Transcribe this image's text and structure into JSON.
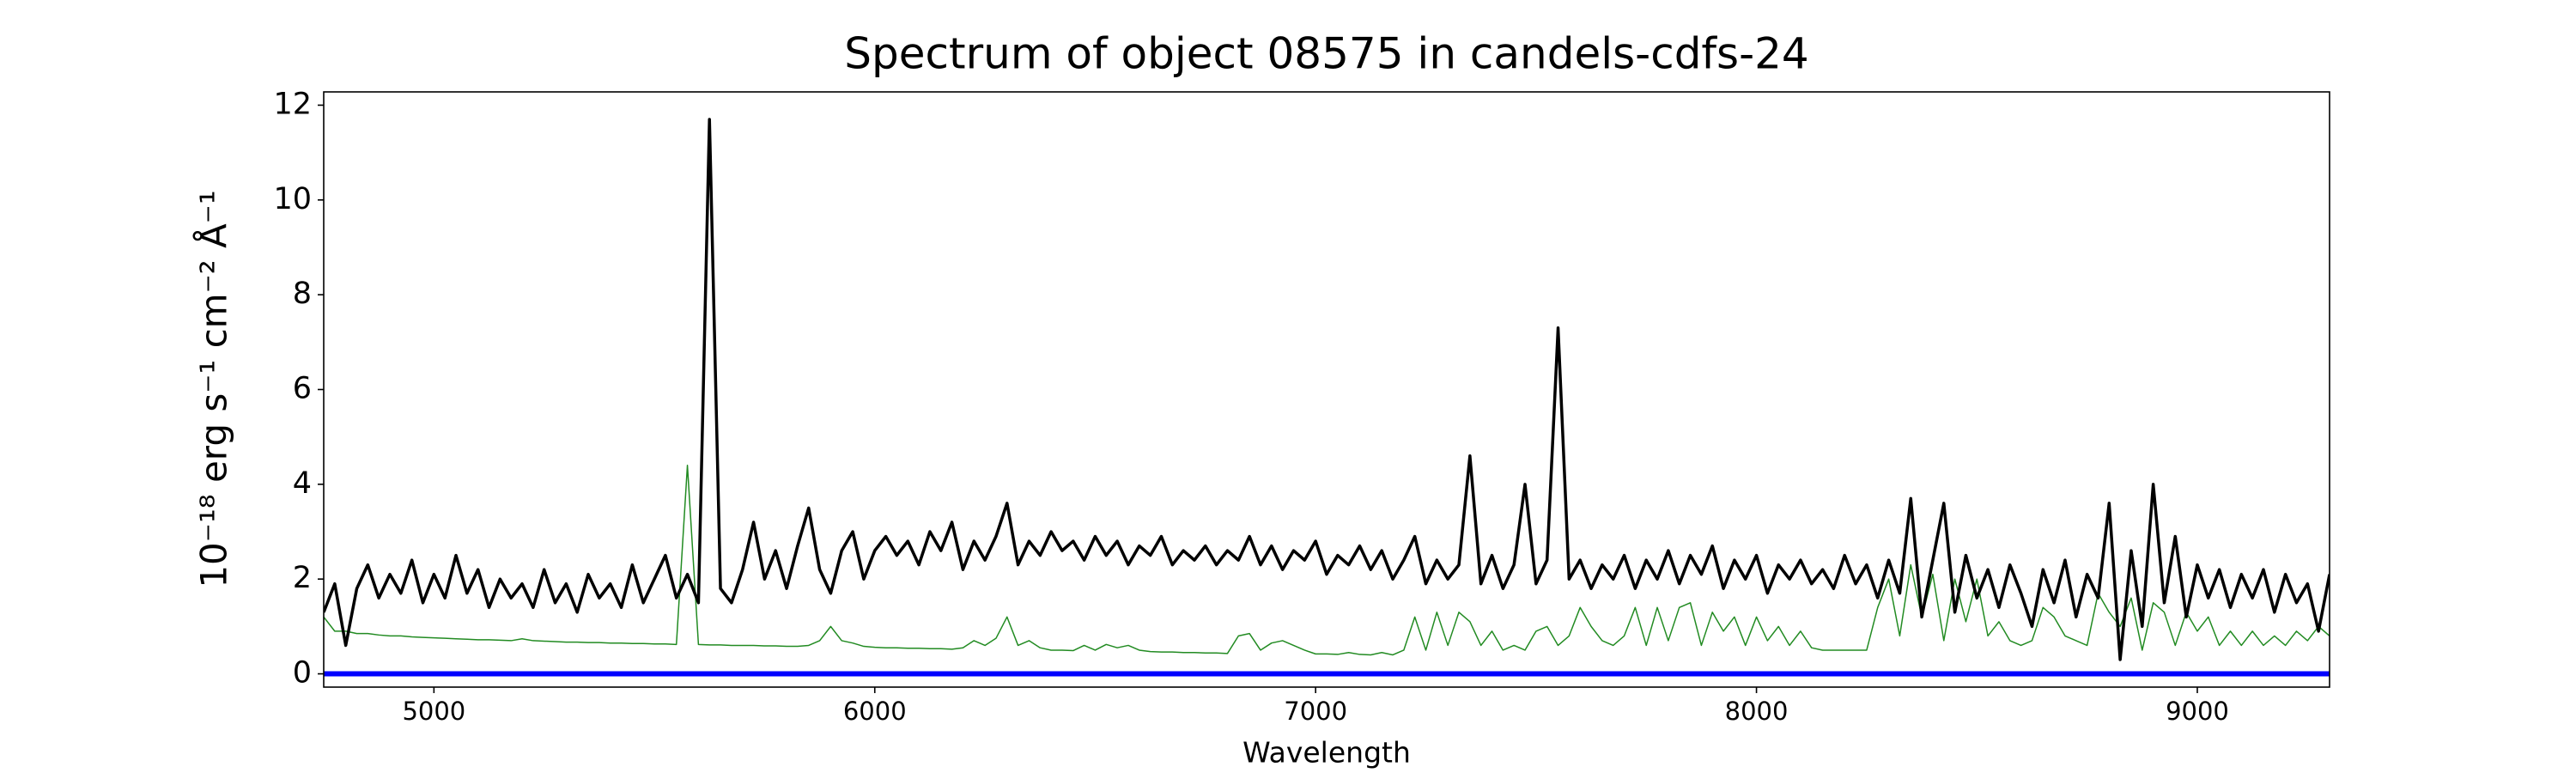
{
  "chart_data": {
    "type": "line",
    "title": "Spectrum of object 08575 in candels-cdfs-24",
    "x_label": "Wavelength",
    "y_label": "10⁻¹⁸ erg s⁻¹ cm⁻² Å⁻¹",
    "x": [
      4750,
      4775,
      4800,
      4825,
      4850,
      4875,
      4900,
      4925,
      4950,
      4975,
      5000,
      5025,
      5050,
      5075,
      5100,
      5125,
      5150,
      5175,
      5200,
      5225,
      5250,
      5275,
      5300,
      5325,
      5350,
      5375,
      5400,
      5425,
      5450,
      5475,
      5500,
      5525,
      5550,
      5575,
      5600,
      5625,
      5650,
      5675,
      5700,
      5725,
      5750,
      5775,
      5800,
      5825,
      5850,
      5875,
      5900,
      5925,
      5950,
      5975,
      6000,
      6025,
      6050,
      6075,
      6100,
      6125,
      6150,
      6175,
      6200,
      6225,
      6250,
      6275,
      6300,
      6325,
      6350,
      6375,
      6400,
      6425,
      6450,
      6475,
      6500,
      6525,
      6550,
      6575,
      6600,
      6625,
      6650,
      6675,
      6700,
      6725,
      6750,
      6775,
      6800,
      6825,
      6850,
      6875,
      6900,
      6925,
      6950,
      6975,
      7000,
      7025,
      7050,
      7075,
      7100,
      7125,
      7150,
      7175,
      7200,
      7225,
      7250,
      7275,
      7300,
      7325,
      7350,
      7375,
      7400,
      7425,
      7450,
      7475,
      7500,
      7525,
      7550,
      7575,
      7600,
      7625,
      7650,
      7675,
      7700,
      7725,
      7750,
      7775,
      7800,
      7825,
      7850,
      7875,
      7900,
      7925,
      7950,
      7975,
      8000,
      8025,
      8050,
      8075,
      8100,
      8125,
      8150,
      8175,
      8200,
      8225,
      8250,
      8275,
      8300,
      8325,
      8350,
      8375,
      8400,
      8425,
      8450,
      8475,
      8500,
      8525,
      8550,
      8575,
      8600,
      8625,
      8650,
      8675,
      8700,
      8725,
      8750,
      8775,
      8800,
      8825,
      8850,
      8875,
      8900,
      8925,
      8950,
      8975,
      9000,
      9025,
      9050,
      9075,
      9100,
      9125,
      9150,
      9175,
      9200,
      9225,
      9250,
      9275,
      9300
    ],
    "series": [
      {
        "color": "#228b22",
        "width": 1.5,
        "values": [
          1.2,
          0.9,
          0.9,
          0.85,
          0.85,
          0.82,
          0.8,
          0.8,
          0.78,
          0.77,
          0.76,
          0.75,
          0.74,
          0.73,
          0.72,
          0.72,
          0.71,
          0.7,
          0.74,
          0.7,
          0.69,
          0.68,
          0.67,
          0.67,
          0.66,
          0.66,
          0.65,
          0.65,
          0.64,
          0.64,
          0.63,
          0.63,
          0.62,
          4.4,
          0.62,
          0.61,
          0.61,
          0.6,
          0.6,
          0.6,
          0.59,
          0.59,
          0.58,
          0.58,
          0.6,
          0.7,
          1.0,
          0.7,
          0.65,
          0.58,
          0.56,
          0.55,
          0.55,
          0.54,
          0.54,
          0.53,
          0.53,
          0.52,
          0.55,
          0.7,
          0.6,
          0.75,
          1.2,
          0.6,
          0.7,
          0.55,
          0.5,
          0.5,
          0.49,
          0.6,
          0.5,
          0.62,
          0.55,
          0.6,
          0.5,
          0.47,
          0.46,
          0.46,
          0.45,
          0.45,
          0.44,
          0.44,
          0.43,
          0.8,
          0.85,
          0.5,
          0.65,
          0.7,
          0.6,
          0.5,
          0.42,
          0.42,
          0.41,
          0.45,
          0.41,
          0.4,
          0.45,
          0.4,
          0.5,
          1.2,
          0.5,
          1.3,
          0.6,
          1.3,
          1.1,
          0.6,
          0.9,
          0.5,
          0.6,
          0.5,
          0.9,
          1.0,
          0.6,
          0.8,
          1.4,
          1.0,
          0.7,
          0.6,
          0.8,
          1.4,
          0.6,
          1.4,
          0.7,
          1.4,
          1.5,
          0.6,
          1.3,
          0.9,
          1.2,
          0.6,
          1.2,
          0.7,
          1.0,
          0.6,
          0.9,
          0.55,
          0.5,
          0.5,
          0.5,
          0.5,
          0.5,
          1.4,
          2.0,
          0.8,
          2.3,
          1.2,
          2.1,
          0.7,
          2.0,
          1.1,
          2.0,
          0.8,
          1.1,
          0.7,
          0.6,
          0.7,
          1.4,
          1.2,
          0.8,
          0.7,
          0.6,
          1.7,
          1.3,
          1.0,
          1.6,
          0.5,
          1.5,
          1.3,
          0.6,
          1.3,
          0.9,
          1.2,
          0.6,
          0.9,
          0.6,
          0.9,
          0.6,
          0.8,
          0.6,
          0.9,
          0.7,
          1.0,
          0.8
        ]
      },
      {
        "color": "#000000",
        "width": 3.5,
        "values": [
          1.3,
          1.9,
          0.6,
          1.8,
          2.3,
          1.6,
          2.1,
          1.7,
          2.4,
          1.5,
          2.1,
          1.6,
          2.5,
          1.7,
          2.2,
          1.4,
          2.0,
          1.6,
          1.9,
          1.4,
          2.2,
          1.5,
          1.9,
          1.3,
          2.1,
          1.6,
          1.9,
          1.4,
          2.3,
          1.5,
          2.0,
          2.5,
          1.6,
          2.1,
          1.5,
          11.7,
          1.8,
          1.5,
          2.2,
          3.2,
          2.0,
          2.6,
          1.8,
          2.7,
          3.5,
          2.2,
          1.7,
          2.6,
          3.0,
          2.0,
          2.6,
          2.9,
          2.5,
          2.8,
          2.3,
          3.0,
          2.6,
          3.2,
          2.2,
          2.8,
          2.4,
          2.9,
          3.6,
          2.3,
          2.8,
          2.5,
          3.0,
          2.6,
          2.8,
          2.4,
          2.9,
          2.5,
          2.8,
          2.3,
          2.7,
          2.5,
          2.9,
          2.3,
          2.6,
          2.4,
          2.7,
          2.3,
          2.6,
          2.4,
          2.9,
          2.3,
          2.7,
          2.2,
          2.6,
          2.4,
          2.8,
          2.1,
          2.5,
          2.3,
          2.7,
          2.2,
          2.6,
          2.0,
          2.4,
          2.9,
          1.9,
          2.4,
          2.0,
          2.3,
          4.6,
          1.9,
          2.5,
          1.8,
          2.3,
          4.0,
          1.9,
          2.4,
          7.3,
          2.0,
          2.4,
          1.8,
          2.3,
          2.0,
          2.5,
          1.8,
          2.4,
          2.0,
          2.6,
          1.9,
          2.5,
          2.1,
          2.7,
          1.8,
          2.4,
          2.0,
          2.5,
          1.7,
          2.3,
          2.0,
          2.4,
          1.9,
          2.2,
          1.8,
          2.5,
          1.9,
          2.3,
          1.6,
          2.4,
          1.7,
          3.7,
          1.2,
          2.4,
          3.6,
          1.3,
          2.5,
          1.6,
          2.2,
          1.4,
          2.3,
          1.7,
          1.0,
          2.2,
          1.5,
          2.4,
          1.2,
          2.1,
          1.6,
          3.6,
          0.3,
          2.6,
          1.0,
          4.0,
          1.5,
          2.9,
          1.2,
          2.3,
          1.6,
          2.2,
          1.4,
          2.1,
          1.6,
          2.2,
          1.3,
          2.1,
          1.5,
          1.9,
          0.9,
          2.1
        ]
      },
      {
        "color": "#0000ff",
        "width": 6,
        "x": [
          4750,
          9300
        ],
        "values": [
          0,
          0
        ]
      }
    ],
    "xlim": [
      4750,
      9300
    ],
    "ylim": [
      -0.28,
      12.28
    ],
    "xticks": [
      5000,
      6000,
      7000,
      8000,
      9000
    ],
    "yticks": [
      0,
      2,
      4,
      6,
      8,
      10,
      12
    ],
    "grid": false
  }
}
